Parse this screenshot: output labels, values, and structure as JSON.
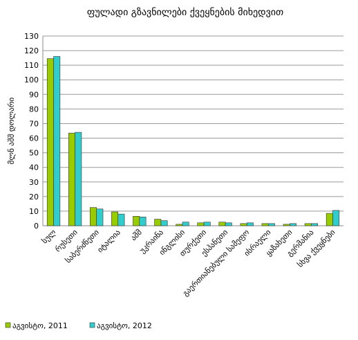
{
  "chart_data": {
    "type": "bar",
    "title": "ფულადი გზავნილები ქვეყნების მიხედვით",
    "y_label": "მლნ აშშ დოლარი",
    "categories": [
      "სულ",
      "რუსეთი",
      "საბერძნეთი",
      "იტალია",
      "აშშ",
      "უკრაინა",
      "ინგლისი",
      "თურქეთი",
      "ესპანეთი",
      "გაერთიანებული სამეფო",
      "ისრაელი",
      "ყაზახეთი",
      "გერმანია",
      "სხვა ქვეყნები"
    ],
    "series": [
      {
        "name": "აგვისტო, 2011",
        "color": "#99cc00",
        "values": [
          114.5,
          63.5,
          12.5,
          9.5,
          6.5,
          4.5,
          1,
          2,
          2.5,
          1.5,
          1.5,
          1,
          1.5,
          8.5
        ]
      },
      {
        "name": "აგვისტო, 2012",
        "color": "#33cccc",
        "values": [
          116,
          64,
          11.5,
          8,
          6,
          3.5,
          2.5,
          2.5,
          2,
          2,
          1.5,
          1.5,
          1.5,
          10.5
        ]
      }
    ],
    "ylim": [
      0,
      130
    ],
    "yticks": [
      0,
      10,
      20,
      30,
      40,
      50,
      60,
      70,
      80,
      90,
      100,
      110,
      120,
      130
    ],
    "grid": true
  }
}
